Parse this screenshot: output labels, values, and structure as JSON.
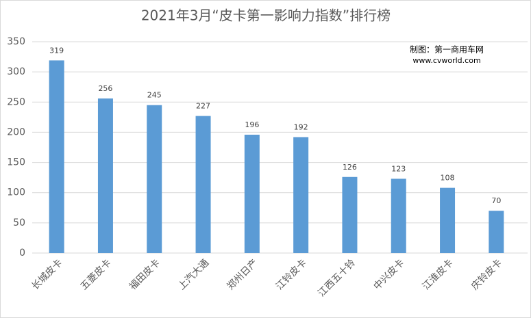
{
  "chart_data": {
    "type": "bar",
    "title": "2021年3月“皮卡第一影响力指数”排行榜",
    "annotations": [
      "制图：第一商用车网",
      "www.cvworld.com"
    ],
    "categories": [
      "长城皮卡",
      "五菱皮卡",
      "福田皮卡",
      "上汽大通",
      "郑州日产",
      "江铃皮卡",
      "江西五十铃",
      "中兴皮卡",
      "江淮皮卡",
      "庆铃皮卡"
    ],
    "values": [
      319,
      256,
      245,
      227,
      196,
      192,
      126,
      123,
      108,
      70
    ],
    "color": "#5b9bd5",
    "ylim": [
      0,
      350
    ],
    "yticks": [
      0,
      50,
      100,
      150,
      200,
      250,
      300,
      350
    ],
    "grid": true
  }
}
